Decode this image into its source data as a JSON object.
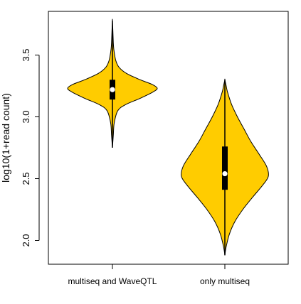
{
  "chart_data": {
    "type": "violin",
    "categories": [
      "multiseq and WaveQTL",
      "only multiseq"
    ],
    "ylabel": "log10(1+read count)",
    "xlabel": "",
    "ylim": [
      1.8,
      3.8
    ],
    "yticks": [
      2.0,
      2.5,
      3.0,
      3.5
    ],
    "ytick_labels": [
      "2.0",
      "2.5",
      "3.0",
      "3.5"
    ],
    "grid": false,
    "fill_color": "#FFCC00",
    "outline_color": "#000000",
    "violins": [
      {
        "category": "multiseq and WaveQTL",
        "min": 2.75,
        "max": 3.78,
        "q1": 3.14,
        "median": 3.22,
        "q3": 3.3,
        "density": [
          [
            2.75,
            0.0
          ],
          [
            2.85,
            0.02
          ],
          [
            2.95,
            0.04
          ],
          [
            3.05,
            0.12
          ],
          [
            3.1,
            0.3
          ],
          [
            3.15,
            0.62
          ],
          [
            3.2,
            0.9
          ],
          [
            3.23,
            1.0
          ],
          [
            3.26,
            0.9
          ],
          [
            3.3,
            0.62
          ],
          [
            3.35,
            0.32
          ],
          [
            3.4,
            0.15
          ],
          [
            3.45,
            0.08
          ],
          [
            3.5,
            0.05
          ],
          [
            3.55,
            0.03
          ],
          [
            3.6,
            0.02
          ],
          [
            3.7,
            0.01
          ],
          [
            3.78,
            0.0
          ]
        ]
      },
      {
        "category": "only multiseq",
        "min": 1.88,
        "max": 3.3,
        "q1": 2.41,
        "median": 2.54,
        "q3": 2.76,
        "density": [
          [
            1.88,
            0.0
          ],
          [
            1.95,
            0.03
          ],
          [
            2.05,
            0.1
          ],
          [
            2.15,
            0.22
          ],
          [
            2.25,
            0.4
          ],
          [
            2.35,
            0.62
          ],
          [
            2.45,
            0.85
          ],
          [
            2.52,
            0.97
          ],
          [
            2.6,
            0.93
          ],
          [
            2.7,
            0.76
          ],
          [
            2.8,
            0.58
          ],
          [
            2.9,
            0.43
          ],
          [
            3.0,
            0.28
          ],
          [
            3.1,
            0.15
          ],
          [
            3.2,
            0.06
          ],
          [
            3.25,
            0.03
          ],
          [
            3.3,
            0.0
          ]
        ]
      }
    ]
  }
}
